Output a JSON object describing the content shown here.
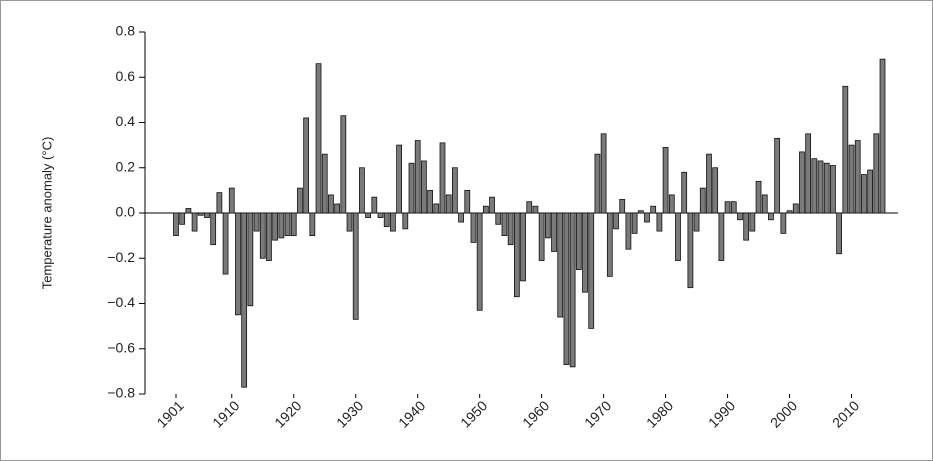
{
  "chart_data": {
    "type": "bar",
    "y_label": "Temperature anomaly (°C)",
    "x": [
      1901,
      1902,
      1903,
      1904,
      1905,
      1906,
      1907,
      1908,
      1909,
      1910,
      1911,
      1912,
      1913,
      1914,
      1915,
      1916,
      1917,
      1918,
      1919,
      1920,
      1921,
      1922,
      1923,
      1924,
      1925,
      1926,
      1927,
      1928,
      1929,
      1930,
      1931,
      1932,
      1933,
      1934,
      1935,
      1936,
      1937,
      1938,
      1939,
      1940,
      1941,
      1942,
      1943,
      1944,
      1945,
      1946,
      1947,
      1948,
      1949,
      1950,
      1951,
      1952,
      1953,
      1954,
      1955,
      1956,
      1957,
      1958,
      1959,
      1960,
      1961,
      1962,
      1963,
      1964,
      1965,
      1966,
      1967,
      1968,
      1969,
      1970,
      1971,
      1972,
      1973,
      1974,
      1975,
      1976,
      1977,
      1978,
      1979,
      1980,
      1981,
      1982,
      1983,
      1984,
      1985,
      1986,
      1987,
      1988,
      1989,
      1990,
      1991,
      1992,
      1993,
      1994,
      1995,
      1996,
      1997,
      1998,
      1999,
      2000,
      2001,
      2002,
      2003,
      2004,
      2005,
      2006,
      2007,
      2008,
      2009,
      2010,
      2011,
      2012,
      2013,
      2014,
      2015
    ],
    "values": [
      -0.1,
      -0.05,
      0.02,
      -0.08,
      -0.01,
      -0.02,
      -0.14,
      0.09,
      -0.27,
      0.11,
      -0.45,
      -0.77,
      -0.41,
      -0.08,
      -0.2,
      -0.21,
      -0.12,
      -0.11,
      -0.1,
      -0.1,
      0.11,
      0.42,
      -0.1,
      0.66,
      0.26,
      0.08,
      0.04,
      0.43,
      -0.08,
      -0.47,
      0.2,
      -0.02,
      0.07,
      -0.02,
      -0.06,
      -0.08,
      0.3,
      -0.07,
      0.22,
      0.32,
      0.23,
      0.1,
      0.04,
      0.31,
      0.08,
      0.2,
      -0.04,
      0.1,
      -0.13,
      -0.43,
      0.03,
      0.07,
      -0.05,
      -0.1,
      -0.14,
      -0.37,
      -0.3,
      0.05,
      0.03,
      -0.21,
      -0.11,
      -0.17,
      -0.46,
      -0.67,
      -0.68,
      -0.25,
      -0.35,
      -0.51,
      0.26,
      0.35,
      -0.28,
      -0.07,
      0.06,
      -0.16,
      -0.09,
      0.01,
      -0.04,
      0.03,
      -0.08,
      0.29,
      0.08,
      -0.21,
      0.18,
      -0.33,
      -0.08,
      0.11,
      0.26,
      0.2,
      -0.21,
      0.05,
      0.05,
      -0.03,
      -0.12,
      -0.08,
      0.14,
      0.08,
      -0.03,
      0.33,
      -0.09,
      0.01,
      0.04,
      0.27,
      0.35,
      0.24,
      0.23,
      0.22,
      0.21,
      -0.18,
      0.56,
      0.3,
      0.32,
      0.17,
      0.19,
      0.35,
      0.68
    ],
    "color": "#7a7a7a",
    "xlim": [
      1896,
      2017.5
    ],
    "xticks": [
      1901,
      1910,
      1920,
      1930,
      1940,
      1950,
      1960,
      1970,
      1980,
      1990,
      2000,
      2010
    ],
    "ylim": [
      -0.8,
      0.8
    ],
    "yticks": [
      {
        "value": -0.8,
        "label": "−0.8"
      },
      {
        "value": -0.6,
        "label": "−0.6"
      },
      {
        "value": -0.4,
        "label": "−0.4"
      },
      {
        "value": -0.2,
        "label": "−0.2"
      },
      {
        "value": 0,
        "label": "0.0"
      },
      {
        "value": 0.2,
        "label": "0.2"
      },
      {
        "value": 0.4,
        "label": "0.4"
      },
      {
        "value": 0.6,
        "label": "0.6"
      },
      {
        "value": 0.8,
        "label": "0.8"
      }
    ],
    "grid": false
  }
}
